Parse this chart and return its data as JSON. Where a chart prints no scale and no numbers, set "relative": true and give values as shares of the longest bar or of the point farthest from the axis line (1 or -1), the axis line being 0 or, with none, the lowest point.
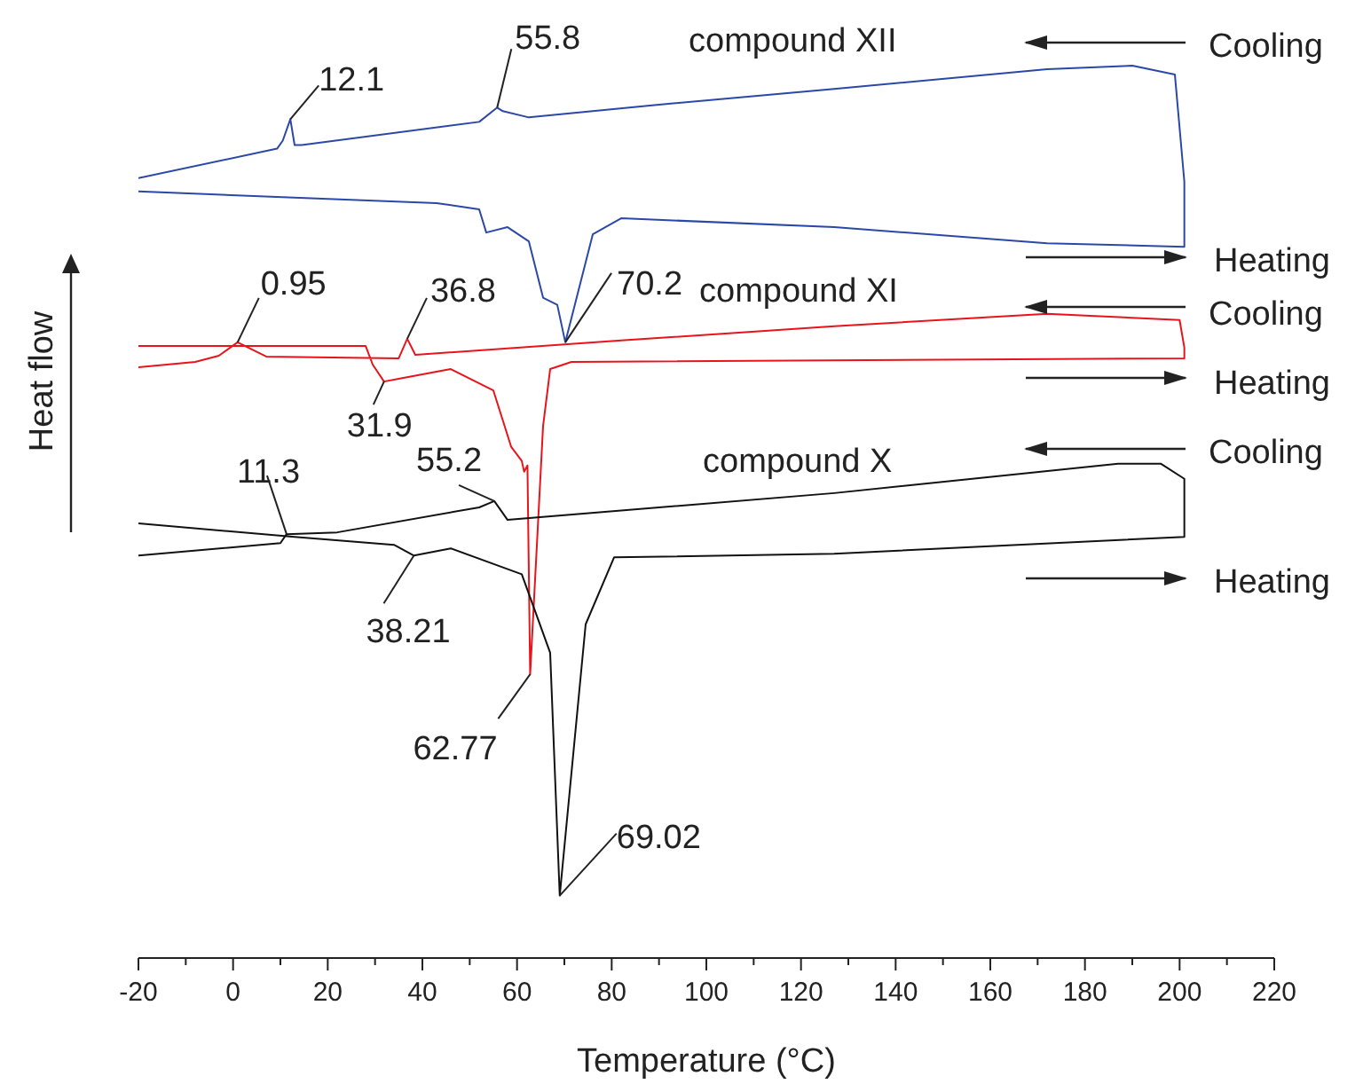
{
  "chart_data": {
    "type": "line",
    "relative": true,
    "xlabel": "Temperature (°C)",
    "ylabel": "Heat flow",
    "xlim": [
      -20,
      220
    ],
    "xticks": [
      -20,
      {
        "value": -10,
        "label": null
      },
      0,
      {
        "value": 10,
        "label": null
      },
      20,
      {
        "value": 30,
        "label": null
      },
      40,
      {
        "value": 50,
        "label": null
      },
      60,
      {
        "value": 70,
        "label": null
      },
      80,
      {
        "value": 90,
        "label": null
      },
      100,
      {
        "value": 110,
        "label": null
      },
      120,
      {
        "value": 130,
        "label": null
      },
      140,
      {
        "value": 150,
        "label": null
      },
      160,
      {
        "value": 170,
        "label": null
      },
      180,
      {
        "value": 190,
        "label": null
      },
      200,
      {
        "value": 210,
        "label": null
      },
      220
    ],
    "grid": false,
    "legend": false,
    "marker": "none",
    "line_style": "solid",
    "series": [
      {
        "name": "compound XII",
        "color": "#2b48a8",
        "x": [
          -20,
          43,
          52,
          53.5,
          58,
          62.5,
          65.5,
          68.5,
          70.2,
          76,
          82,
          127,
          172,
          201,
          201,
          199,
          190,
          172,
          127,
          89.5,
          62.5,
          57,
          55.8,
          52,
          14.5,
          13,
          12.1,
          10.5,
          9.3,
          -20
        ],
        "values": [
          0.859,
          0.846,
          0.839,
          0.813,
          0.819,
          0.803,
          0.74,
          0.732,
          0.69,
          0.811,
          0.829,
          0.819,
          0.801,
          0.797,
          0.87,
          0.99,
          1.0,
          0.996,
          0.974,
          0.956,
          0.942,
          0.949,
          0.953,
          0.937,
          0.911,
          0.911,
          0.94,
          0.916,
          0.907,
          0.874
        ]
      },
      {
        "name": "compound XI",
        "color": "#e8141c",
        "x": [
          -20,
          28,
          29.5,
          31.9,
          35,
          46,
          55,
          58.75,
          61,
          61.5,
          62.2,
          62.77,
          65.5,
          67,
          71.5,
          201,
          201,
          200,
          172,
          127,
          82,
          38.5,
          36.8,
          35,
          7,
          0.95,
          -3,
          -8,
          -20
        ],
        "values": [
          0.686,
          0.686,
          0.665,
          0.646,
          0.649,
          0.66,
          0.636,
          0.573,
          0.557,
          0.545,
          0.552,
          0.318,
          0.596,
          0.66,
          0.668,
          0.672,
          0.684,
          0.715,
          0.722,
          0.708,
          0.692,
          0.676,
          0.694,
          0.672,
          0.674,
          0.69,
          0.675,
          0.668,
          0.662
        ]
      },
      {
        "name": "compound X",
        "color": "#111111",
        "x": [
          -20,
          13,
          34,
          38.21,
          46,
          61,
          67,
          69.02,
          74.5,
          80.5,
          127,
          201,
          201,
          196,
          187,
          127,
          58,
          55.2,
          52,
          22,
          11.3,
          10,
          -20
        ],
        "values": [
          0.487,
          0.472,
          0.463,
          0.451,
          0.459,
          0.43,
          0.342,
          0.07,
          0.374,
          0.449,
          0.453,
          0.472,
          0.537,
          0.554,
          0.554,
          0.521,
          0.491,
          0.512,
          0.505,
          0.477,
          0.475,
          0.465,
          0.451
        ]
      }
    ],
    "annotations": [
      {
        "text": "12.1",
        "x": 12.1,
        "y": 0.94
      },
      {
        "text": "55.8",
        "x": 55.8,
        "y": 0.953
      },
      {
        "text": "70.2",
        "x": 70.2,
        "y": 0.69
      },
      {
        "text": "0.95",
        "x": 0.95,
        "y": 0.69
      },
      {
        "text": "36.8",
        "x": 36.8,
        "y": 0.694
      },
      {
        "text": "31.9",
        "x": 31.9,
        "y": 0.646
      },
      {
        "text": "11.3",
        "x": 11.3,
        "y": 0.475
      },
      {
        "text": "55.2",
        "x": 55.2,
        "y": 0.512
      },
      {
        "text": "38.21",
        "x": 38.21,
        "y": 0.451
      },
      {
        "text": "62.77",
        "x": 62.77,
        "y": 0.318
      },
      {
        "text": "69.02",
        "x": 69.02,
        "y": 0.07
      },
      "Cooling",
      "Heating",
      "Cooling",
      "Heating",
      "Cooling",
      "Heating"
    ]
  }
}
